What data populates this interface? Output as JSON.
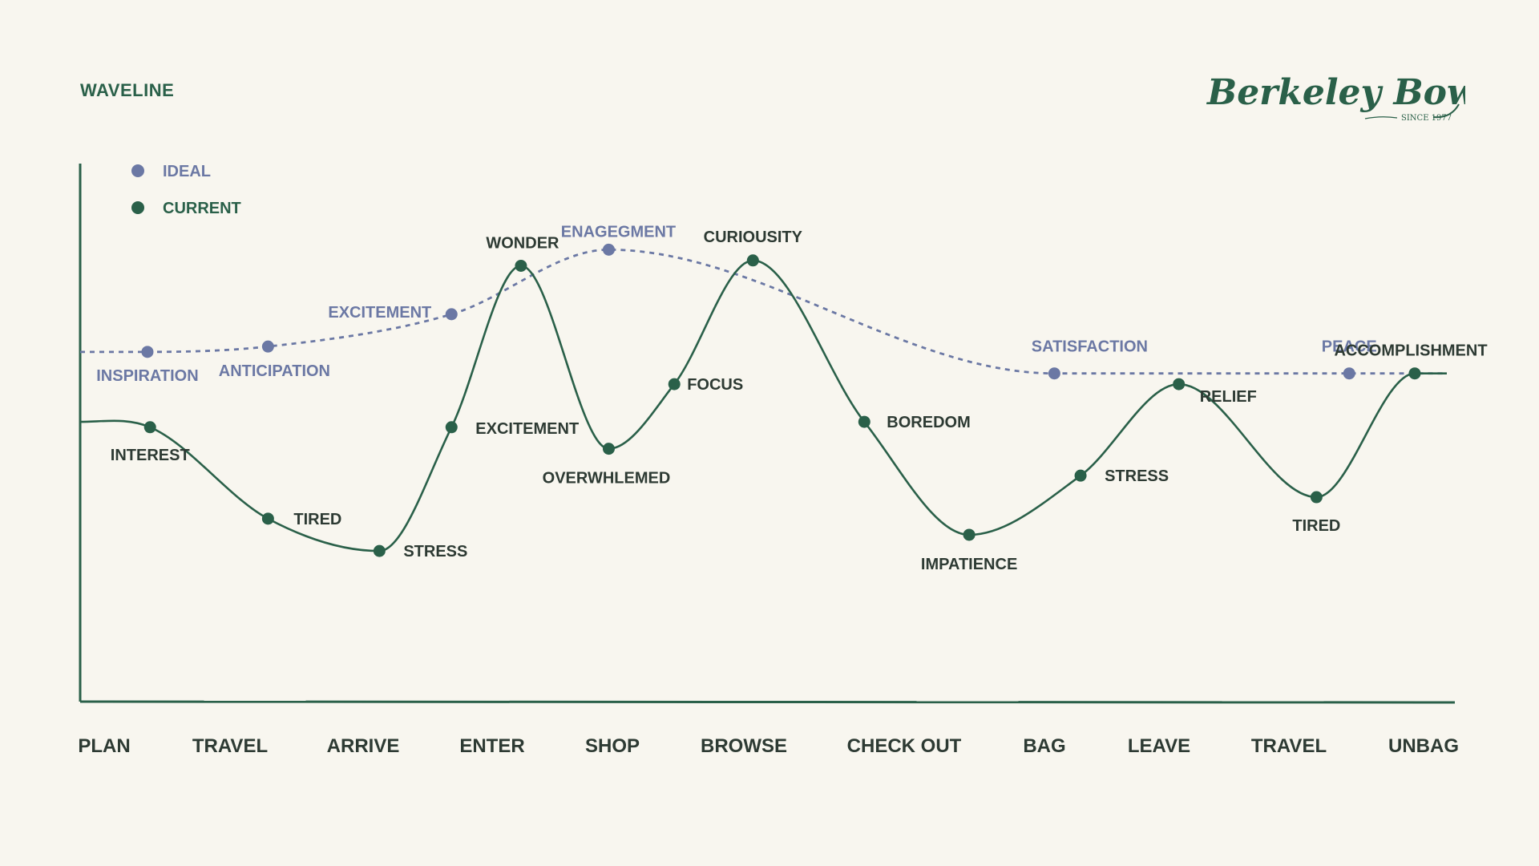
{
  "chart_data": {
    "type": "line",
    "title": "WAVELINE",
    "categories": [
      "PLAN",
      "TRAVEL",
      "ARRIVE",
      "ENTER",
      "SHOP",
      "BROWSE",
      "CHECK OUT",
      "BAG",
      "LEAVE",
      "TRAVEL",
      "UNBAG"
    ],
    "legend": {
      "placement": "top-left",
      "entries": [
        "IDEAL",
        "CURRENT"
      ]
    },
    "grid": false,
    "ylim": [
      0,
      100
    ],
    "series": [
      {
        "name": "IDEAL",
        "style": "dashed",
        "points": [
          {
            "x": 0.33,
            "y": 65,
            "label": "INSPIRATION"
          },
          {
            "x": 1.25,
            "y": 66,
            "label": "ANTICIPATION"
          },
          {
            "x": 2.65,
            "y": 72,
            "label": "EXCITEMENT"
          },
          {
            "x": 3.85,
            "y": 84,
            "label": "ENAGEGMENT"
          },
          {
            "x": 7.25,
            "y": 61,
            "label": "SATISFACTION"
          },
          {
            "x": 9.5,
            "y": 61,
            "label": "PEACE"
          }
        ]
      },
      {
        "name": "CURRENT",
        "style": "solid",
        "points": [
          {
            "x": 0.35,
            "y": 51,
            "label": "INTEREST"
          },
          {
            "x": 1.25,
            "y": 34,
            "label": "TIRED"
          },
          {
            "x": 2.1,
            "y": 28,
            "label": "STRESS"
          },
          {
            "x": 2.65,
            "y": 51,
            "label": "EXCITEMENT"
          },
          {
            "x": 3.18,
            "y": 81,
            "label": "WONDER"
          },
          {
            "x": 3.85,
            "y": 47,
            "label": "OVERWHLEMED"
          },
          {
            "x": 4.35,
            "y": 59,
            "label": "FOCUS"
          },
          {
            "x": 4.95,
            "y": 82,
            "label": "CURIOUSITY"
          },
          {
            "x": 5.8,
            "y": 52,
            "label": "BOREDOM"
          },
          {
            "x": 6.6,
            "y": 31,
            "label": "IMPATIENCE"
          },
          {
            "x": 7.45,
            "y": 42,
            "label": "STRESS"
          },
          {
            "x": 8.2,
            "y": 59,
            "label": "RELIEF"
          },
          {
            "x": 9.25,
            "y": 38,
            "label": "TIRED"
          },
          {
            "x": 10.0,
            "y": 61,
            "label": "ACCOMPLISHMENT"
          }
        ]
      }
    ]
  },
  "colors": {
    "background": "#f8f6ef",
    "ideal": "#6b78a4",
    "current": "#2a6049",
    "text": "#2d3a33"
  },
  "logo": {
    "name": "Berkeley Bowl",
    "tagline": "SINCE 1977"
  }
}
